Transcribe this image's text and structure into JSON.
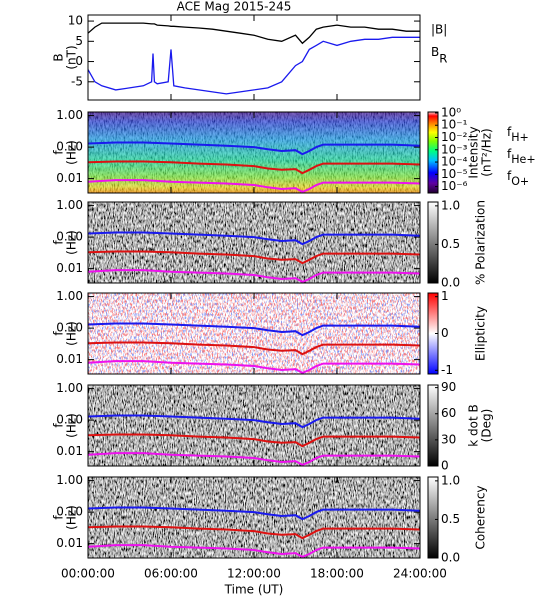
{
  "chart_data": [
    {
      "type": "line",
      "title": "ACE Mag 2015-245",
      "ylabel": [
        "B",
        "(nT)"
      ],
      "xlim": [
        0,
        24
      ],
      "xticks": [
        0,
        6,
        12,
        18,
        24
      ],
      "ylim": [
        -9.5,
        11.5
      ],
      "yticks": [
        -5,
        0,
        5,
        10
      ],
      "x": [
        0,
        0.5,
        1,
        2,
        3,
        4,
        4.6,
        4.7,
        4.8,
        5,
        5.8,
        6,
        6.2,
        7,
        8,
        9,
        10,
        11,
        12,
        13,
        14,
        15,
        15.5,
        16,
        16.5,
        17,
        18,
        19,
        20,
        21,
        22,
        23,
        24
      ],
      "series": [
        {
          "name": "|B|",
          "color": "#000000",
          "values": [
            7,
            8.5,
            9.5,
            9.5,
            9.5,
            9.5,
            9.3,
            9.3,
            9.3,
            9,
            8.8,
            8.7,
            8.7,
            8.5,
            8.3,
            8,
            7.5,
            7,
            6.5,
            5.5,
            5,
            6.5,
            4.5,
            6,
            8,
            8.5,
            9,
            8.5,
            8.5,
            8,
            8,
            7.5,
            7.5
          ]
        },
        {
          "name": "BR",
          "color": "#1a1aee",
          "values": [
            -2,
            -5,
            -6,
            -7,
            -6.5,
            -6,
            -5,
            2,
            -5,
            -5.5,
            -5,
            3,
            -6,
            -6.5,
            -7,
            -7.5,
            -8,
            -7.5,
            -7,
            -6.5,
            -5,
            -1,
            0,
            3,
            4,
            5,
            4,
            5,
            5.5,
            5.5,
            6,
            6,
            6
          ]
        }
      ]
    },
    {
      "type": "spectrogram",
      "ylabel": [
        "f",
        "(Hz)"
      ],
      "yscale": "log",
      "xlim": [
        0,
        24
      ],
      "xticks": [
        0,
        6,
        12,
        18,
        24
      ],
      "ylim": [
        0.0035,
        1.3
      ],
      "yticks": [
        {
          "value": 1,
          "label": "1.00"
        },
        {
          "value": 0.1,
          "label": "0.10"
        },
        {
          "value": 0.01,
          "label": "0.01"
        }
      ],
      "colorbar": {
        "label": [
          "Intensity",
          "(nT²/Hz)"
        ],
        "colormap": "rainbow",
        "log": true,
        "lim": [
          3e-07,
          1.2
        ],
        "ticks": [
          {
            "value": 1,
            "label": "10⁰"
          },
          {
            "value": 0.1,
            "label": "10⁻¹"
          },
          {
            "value": 0.01,
            "label": "10⁻²"
          },
          {
            "value": 0.001,
            "label": "10⁻³"
          },
          {
            "value": 0.0001,
            "label": "10⁻⁴"
          },
          {
            "value": 1e-05,
            "label": "10⁻⁵"
          },
          {
            "value": 1e-06,
            "label": "10⁻⁶"
          }
        ]
      },
      "x": [
        0,
        2,
        4,
        6,
        8,
        10,
        12,
        13,
        14,
        15,
        15.5,
        16,
        16.5,
        17,
        18,
        20,
        22,
        24
      ],
      "series": [
        {
          "name": "fH+",
          "color": "#1a1aee",
          "values": [
            0.13,
            0.14,
            0.14,
            0.13,
            0.12,
            0.11,
            0.1,
            0.085,
            0.075,
            0.08,
            0.06,
            0.075,
            0.1,
            0.12,
            0.12,
            0.12,
            0.12,
            0.11
          ]
        },
        {
          "name": "fHe+",
          "color": "#dd1111",
          "values": [
            0.033,
            0.035,
            0.035,
            0.033,
            0.03,
            0.028,
            0.025,
            0.021,
            0.019,
            0.02,
            0.015,
            0.019,
            0.025,
            0.03,
            0.03,
            0.03,
            0.03,
            0.028
          ]
        },
        {
          "name": "fO+",
          "color": "#ee11ee",
          "values": [
            0.008,
            0.009,
            0.009,
            0.008,
            0.0075,
            0.007,
            0.0063,
            0.0053,
            0.0047,
            0.005,
            0.0038,
            0.0047,
            0.0063,
            0.0075,
            0.0075,
            0.0075,
            0.0075,
            0.007
          ]
        }
      ]
    },
    {
      "type": "spectrogram",
      "ylabel": [
        "f",
        "(Hz)"
      ],
      "yscale": "log",
      "xlim": [
        0,
        24
      ],
      "xticks": [
        0,
        6,
        12,
        18,
        24
      ],
      "ylim": [
        0.0035,
        1.3
      ],
      "yticks": [
        {
          "value": 1,
          "label": "1.00"
        },
        {
          "value": 0.1,
          "label": "0.10"
        },
        {
          "value": 0.01,
          "label": "0.01"
        }
      ],
      "colorbar": {
        "label": [
          "% Polarization"
        ],
        "colormap": "gray",
        "log": false,
        "lim": [
          0,
          1.05
        ],
        "ticks": [
          {
            "value": 0,
            "label": "0.0"
          },
          {
            "value": 0.5,
            "label": "0.5"
          },
          {
            "value": 1,
            "label": "1.0"
          }
        ]
      },
      "x": [
        0,
        2,
        4,
        6,
        8,
        10,
        12,
        13,
        14,
        15,
        15.5,
        16,
        16.5,
        17,
        18,
        20,
        22,
        24
      ],
      "series": [
        {
          "color": "#1a1aee",
          "values": [
            0.13,
            0.14,
            0.14,
            0.13,
            0.12,
            0.11,
            0.1,
            0.085,
            0.075,
            0.08,
            0.06,
            0.075,
            0.1,
            0.12,
            0.12,
            0.12,
            0.12,
            0.11
          ]
        },
        {
          "color": "#dd1111",
          "values": [
            0.033,
            0.035,
            0.035,
            0.033,
            0.03,
            0.028,
            0.025,
            0.021,
            0.019,
            0.02,
            0.015,
            0.019,
            0.025,
            0.03,
            0.03,
            0.03,
            0.03,
            0.028
          ]
        },
        {
          "color": "#ee11ee",
          "values": [
            0.008,
            0.009,
            0.009,
            0.008,
            0.0075,
            0.007,
            0.0063,
            0.0053,
            0.0047,
            0.005,
            0.0038,
            0.0047,
            0.0063,
            0.0075,
            0.0075,
            0.0075,
            0.0075,
            0.007
          ]
        }
      ]
    },
    {
      "type": "spectrogram",
      "ylabel": [
        "f",
        "(Hz)"
      ],
      "yscale": "log",
      "xlim": [
        0,
        24
      ],
      "xticks": [
        0,
        6,
        12,
        18,
        24
      ],
      "ylim": [
        0.0035,
        1.3
      ],
      "yticks": [
        {
          "value": 1,
          "label": "1.00"
        },
        {
          "value": 0.1,
          "label": "0.10"
        },
        {
          "value": 0.01,
          "label": "0.01"
        }
      ],
      "colorbar": {
        "label": [
          "Ellipticity"
        ],
        "colormap": "bwr",
        "log": false,
        "lim": [
          -1.1,
          1.1
        ],
        "ticks": [
          -1,
          0,
          1
        ]
      },
      "x": [
        0,
        2,
        4,
        6,
        8,
        10,
        12,
        13,
        14,
        15,
        15.5,
        16,
        16.5,
        17,
        18,
        20,
        22,
        24
      ],
      "series": [
        {
          "color": "#1a1aee",
          "values": [
            0.13,
            0.14,
            0.14,
            0.13,
            0.12,
            0.11,
            0.1,
            0.085,
            0.075,
            0.08,
            0.06,
            0.075,
            0.1,
            0.12,
            0.12,
            0.12,
            0.12,
            0.11
          ]
        },
        {
          "color": "#dd1111",
          "values": [
            0.033,
            0.035,
            0.035,
            0.033,
            0.03,
            0.028,
            0.025,
            0.021,
            0.019,
            0.02,
            0.015,
            0.019,
            0.025,
            0.03,
            0.03,
            0.03,
            0.03,
            0.028
          ]
        },
        {
          "color": "#ee11ee",
          "values": [
            0.008,
            0.009,
            0.009,
            0.008,
            0.0075,
            0.007,
            0.0063,
            0.0053,
            0.0047,
            0.005,
            0.0038,
            0.0047,
            0.0063,
            0.0075,
            0.0075,
            0.0075,
            0.0075,
            0.007
          ]
        }
      ]
    },
    {
      "type": "spectrogram",
      "ylabel": [
        "f",
        "(Hz)"
      ],
      "yscale": "log",
      "xlim": [
        0,
        24
      ],
      "xticks": [
        0,
        6,
        12,
        18,
        24
      ],
      "ylim": [
        0.0035,
        1.3
      ],
      "yticks": [
        {
          "value": 1,
          "label": "1.00"
        },
        {
          "value": 0.1,
          "label": "0.10"
        },
        {
          "value": 0.01,
          "label": "0.01"
        }
      ],
      "colorbar": {
        "label": [
          "k dot B",
          "(Deg)"
        ],
        "colormap": "gray",
        "log": false,
        "lim": [
          0,
          93
        ],
        "ticks": [
          0,
          30,
          60,
          90
        ]
      },
      "x": [
        0,
        2,
        4,
        6,
        8,
        10,
        12,
        13,
        14,
        15,
        15.5,
        16,
        16.5,
        17,
        18,
        20,
        22,
        24
      ],
      "series": [
        {
          "color": "#1a1aee",
          "values": [
            0.13,
            0.14,
            0.14,
            0.13,
            0.12,
            0.11,
            0.1,
            0.085,
            0.075,
            0.08,
            0.06,
            0.075,
            0.1,
            0.12,
            0.12,
            0.12,
            0.12,
            0.11
          ]
        },
        {
          "color": "#dd1111",
          "values": [
            0.033,
            0.035,
            0.035,
            0.033,
            0.03,
            0.028,
            0.025,
            0.021,
            0.019,
            0.02,
            0.015,
            0.019,
            0.025,
            0.03,
            0.03,
            0.03,
            0.03,
            0.028
          ]
        },
        {
          "color": "#ee11ee",
          "values": [
            0.008,
            0.009,
            0.009,
            0.008,
            0.0075,
            0.007,
            0.0063,
            0.0053,
            0.0047,
            0.005,
            0.0038,
            0.0047,
            0.0063,
            0.0075,
            0.0075,
            0.0075,
            0.0075,
            0.007
          ]
        }
      ]
    },
    {
      "type": "spectrogram",
      "ylabel": [
        "f",
        "(Hz)"
      ],
      "yscale": "log",
      "xlabel": "Time (UT)",
      "xlim": [
        0,
        24
      ],
      "xticks": [
        {
          "value": 0,
          "label": "00:00:00"
        },
        {
          "value": 6,
          "label": "06:00:00"
        },
        {
          "value": 12,
          "label": "12:00:00"
        },
        {
          "value": 18,
          "label": "18:00:00"
        },
        {
          "value": 24,
          "label": "24:00:00"
        }
      ],
      "ylim": [
        0.0035,
        1.3
      ],
      "yticks": [
        {
          "value": 1,
          "label": "1.00"
        },
        {
          "value": 0.1,
          "label": "0.10"
        },
        {
          "value": 0.01,
          "label": "0.01"
        }
      ],
      "colorbar": {
        "label": [
          "Coherency"
        ],
        "colormap": "gray",
        "log": false,
        "lim": [
          0,
          1.05
        ],
        "ticks": [
          {
            "value": 0,
            "label": "0.0"
          },
          {
            "value": 0.5,
            "label": "0.5"
          },
          {
            "value": 1,
            "label": "1.0"
          }
        ]
      },
      "x": [
        0,
        2,
        4,
        6,
        8,
        10,
        12,
        13,
        14,
        15,
        15.5,
        16,
        16.5,
        17,
        18,
        20,
        22,
        24
      ],
      "series": [
        {
          "color": "#1a1aee",
          "values": [
            0.13,
            0.14,
            0.14,
            0.13,
            0.12,
            0.11,
            0.1,
            0.085,
            0.075,
            0.08,
            0.06,
            0.075,
            0.1,
            0.12,
            0.12,
            0.12,
            0.12,
            0.11
          ]
        },
        {
          "color": "#dd1111",
          "values": [
            0.033,
            0.035,
            0.035,
            0.033,
            0.03,
            0.028,
            0.025,
            0.021,
            0.019,
            0.02,
            0.015,
            0.019,
            0.025,
            0.03,
            0.03,
            0.03,
            0.03,
            0.028
          ]
        },
        {
          "color": "#ee11ee",
          "values": [
            0.008,
            0.009,
            0.009,
            0.008,
            0.0075,
            0.007,
            0.0063,
            0.0053,
            0.0047,
            0.005,
            0.0038,
            0.0047,
            0.0063,
            0.0075,
            0.0075,
            0.0075,
            0.0075,
            0.007
          ]
        }
      ]
    }
  ]
}
